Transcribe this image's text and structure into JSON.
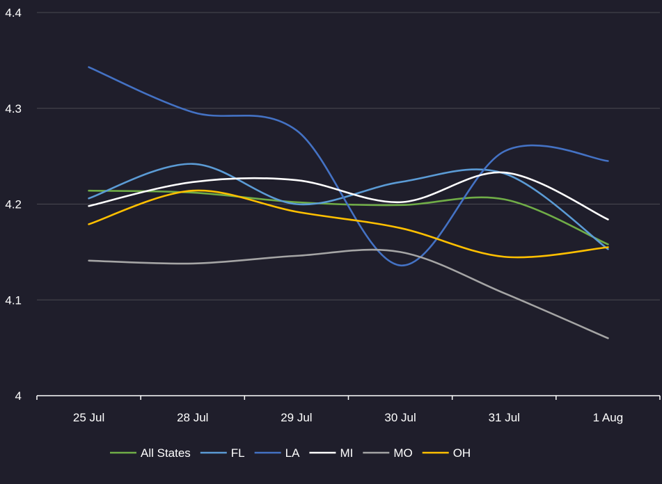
{
  "chart_data": {
    "type": "line",
    "title": "",
    "xlabel": "",
    "ylabel": "",
    "categories": [
      "25 Jul",
      "28 Jul",
      "29 Jul",
      "30 Jul",
      "31 Jul",
      "1 Aug"
    ],
    "ylim": [
      4,
      4.4
    ],
    "yticks": [
      "4",
      "4.1",
      "4.2",
      "4.3",
      "4.4"
    ],
    "grid": true,
    "legend_position": "bottom",
    "series": [
      {
        "name": "All States",
        "color": "#70ad47",
        "values": [
          4.214,
          4.212,
          4.202,
          4.199,
          4.205,
          4.158
        ]
      },
      {
        "name": "FL",
        "color": "#5b9bd5",
        "values": [
          4.206,
          4.242,
          4.2,
          4.223,
          4.232,
          4.153
        ]
      },
      {
        "name": "LA",
        "color": "#4472c4",
        "values": [
          4.343,
          4.296,
          4.277,
          4.136,
          4.255,
          4.245
        ]
      },
      {
        "name": "MI",
        "color": "#ffffff",
        "values": [
          4.198,
          4.223,
          4.225,
          4.202,
          4.233,
          4.184
        ]
      },
      {
        "name": "MO",
        "color": "#a5a5a5",
        "values": [
          4.141,
          4.138,
          4.146,
          4.15,
          4.107,
          4.06
        ]
      },
      {
        "name": "OH",
        "color": "#ffc000",
        "values": [
          4.179,
          4.214,
          4.192,
          4.175,
          4.145,
          4.155
        ]
      }
    ]
  }
}
